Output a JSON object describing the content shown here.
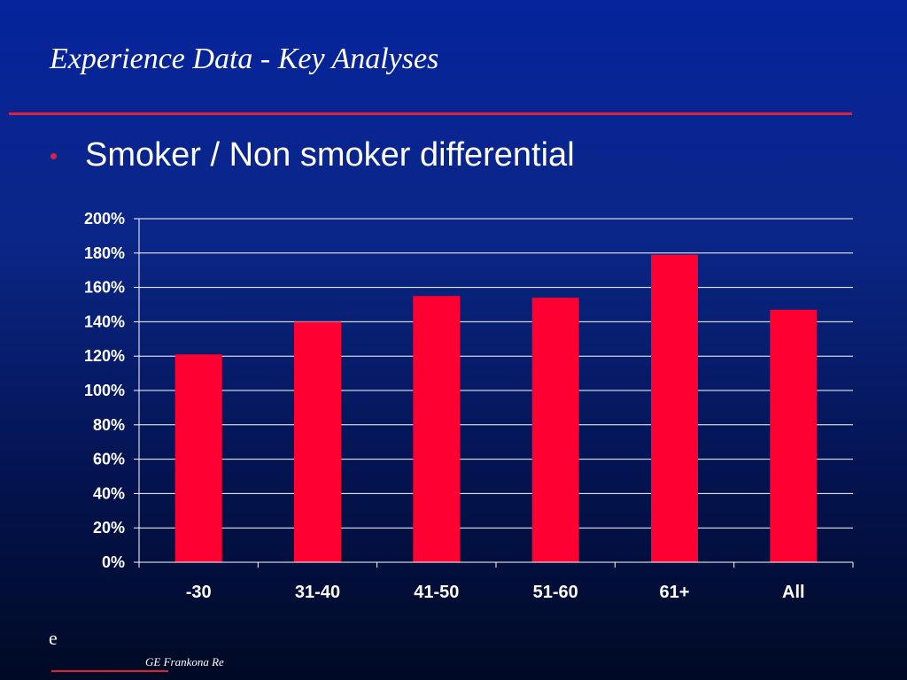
{
  "slide": {
    "title": "Experience Data - Key Analyses",
    "bullet": "Smoker / Non smoker differential",
    "footer_mark": "e",
    "footer_brand": "GE Frankona Re"
  },
  "colors": {
    "accent": "#e0203c",
    "bar": "#ff0033",
    "text": "#ffffff",
    "grid": "#ffffff"
  },
  "chart_data": {
    "type": "bar",
    "categories": [
      "-30",
      "31-40",
      "41-50",
      "51-60",
      "61+",
      "All"
    ],
    "values": [
      121,
      140,
      155,
      154,
      179,
      147
    ],
    "ylim": [
      0,
      200
    ],
    "y_ticks": [
      0,
      20,
      40,
      60,
      80,
      100,
      120,
      140,
      160,
      180,
      200
    ],
    "y_tick_labels": [
      "0%",
      "20%",
      "40%",
      "60%",
      "80%",
      "100%",
      "120%",
      "140%",
      "160%",
      "180%",
      "200%"
    ],
    "grid": true,
    "legend": "none"
  }
}
